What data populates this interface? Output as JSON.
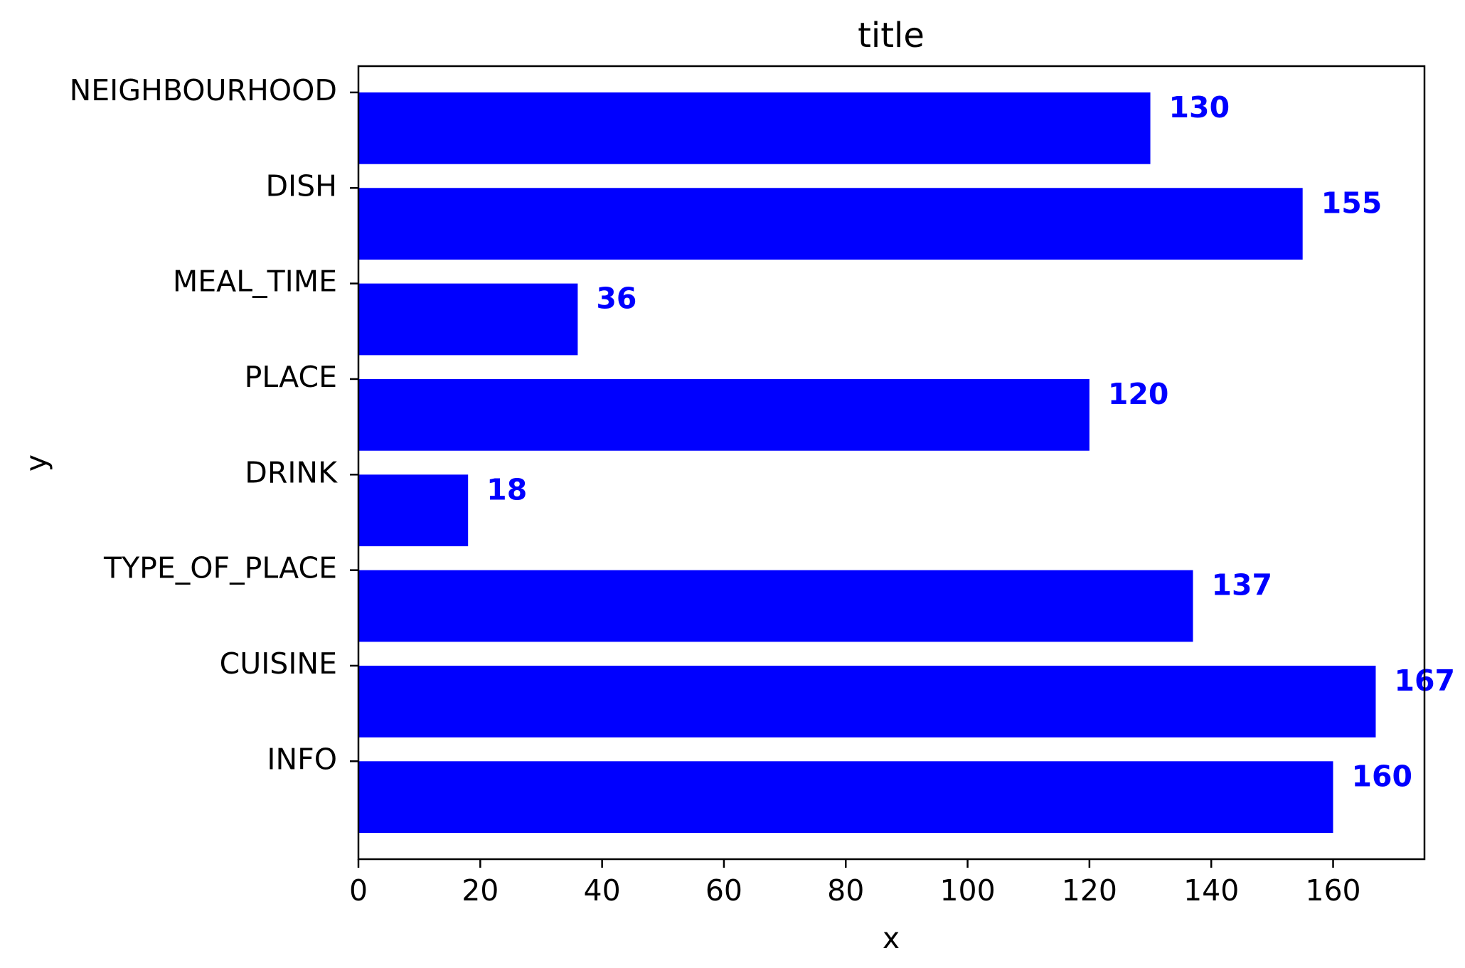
{
  "chart_data": {
    "type": "bar",
    "orientation": "horizontal",
    "title": "title",
    "xlabel": "x",
    "ylabel": "y",
    "categories": [
      "INFO",
      "CUISINE",
      "TYPE_OF_PLACE",
      "DRINK",
      "PLACE",
      "MEAL_TIME",
      "DISH",
      "NEIGHBOURHOOD"
    ],
    "values": [
      160,
      167,
      137,
      18,
      120,
      36,
      155,
      130
    ],
    "data_labels": [
      "160",
      "167",
      "137",
      "18",
      "120",
      "36",
      "155",
      "130"
    ],
    "xlim": [
      0,
      175
    ],
    "xticks": [
      0,
      20,
      40,
      60,
      80,
      100,
      120,
      140,
      160
    ],
    "xtick_labels": [
      "0",
      "20",
      "40",
      "60",
      "80",
      "100",
      "120",
      "140",
      "160"
    ],
    "bar_color": "#0000ff",
    "label_color": "#0000ff",
    "grid": false,
    "legend": "none"
  }
}
